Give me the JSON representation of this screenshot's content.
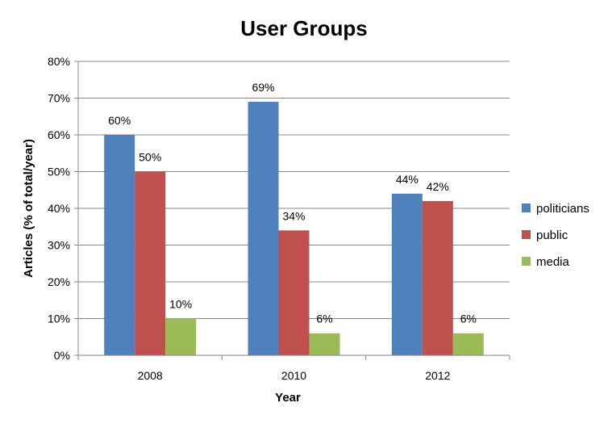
{
  "chart_data": {
    "type": "bar",
    "title": "User Groups",
    "xlabel": "Year",
    "ylabel": "Articles (% of total/year)",
    "categories": [
      "2008",
      "2010",
      "2012"
    ],
    "series": [
      {
        "name": "politicians",
        "values": [
          60,
          69,
          44
        ],
        "labels": [
          "60%",
          "69%",
          "44%"
        ],
        "color": "#4F81BD"
      },
      {
        "name": "public",
        "values": [
          50,
          34,
          42
        ],
        "labels": [
          "50%",
          "34%",
          "42%"
        ],
        "color": "#C0504D"
      },
      {
        "name": "media",
        "values": [
          10,
          6,
          6
        ],
        "labels": [
          "10%",
          "6%",
          "6%"
        ],
        "color": "#9BBB59"
      }
    ],
    "ylim": [
      0,
      80
    ],
    "yticks": [
      0,
      10,
      20,
      30,
      40,
      50,
      60,
      70,
      80
    ],
    "ytick_labels": [
      "0%",
      "10%",
      "20%",
      "30%",
      "40%",
      "50%",
      "60%",
      "70%",
      "80%"
    ],
    "grid": true,
    "legend_position": "right",
    "colors": {
      "gridline": "#888888",
      "axis": "#888888"
    }
  }
}
